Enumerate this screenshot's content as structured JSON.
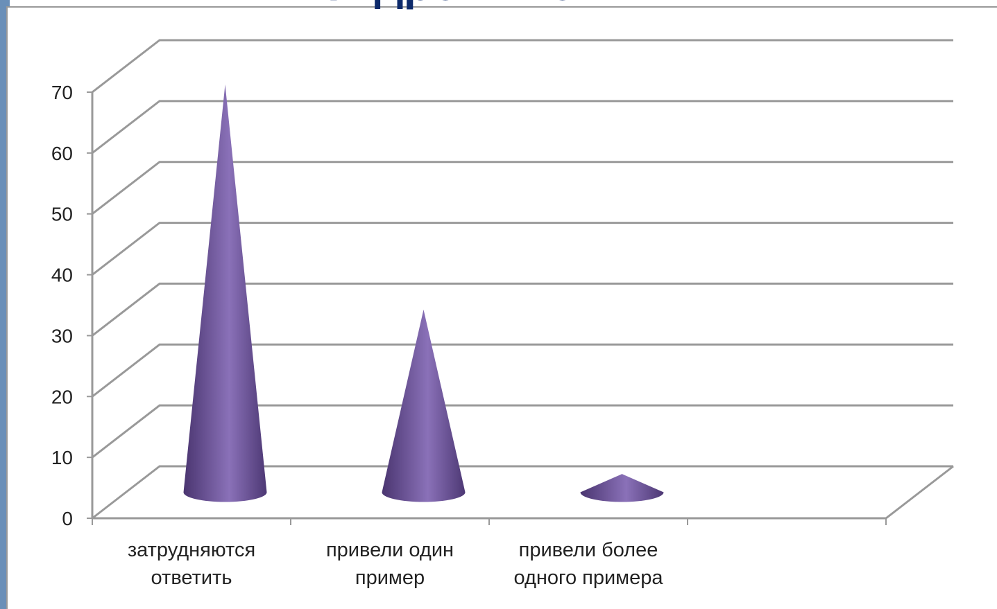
{
  "chart_data": {
    "type": "cone",
    "title": "гидронимов»",
    "categories": [
      "затрудняются ответить",
      "привели один пример",
      "привели более одного примера",
      null
    ],
    "values": [
      67,
      30,
      3,
      null
    ],
    "color": "#6a5394",
    "ylim": [
      0,
      70
    ],
    "yticks": [
      0,
      10,
      20,
      30,
      40,
      50,
      60,
      70
    ],
    "grid": true
  }
}
